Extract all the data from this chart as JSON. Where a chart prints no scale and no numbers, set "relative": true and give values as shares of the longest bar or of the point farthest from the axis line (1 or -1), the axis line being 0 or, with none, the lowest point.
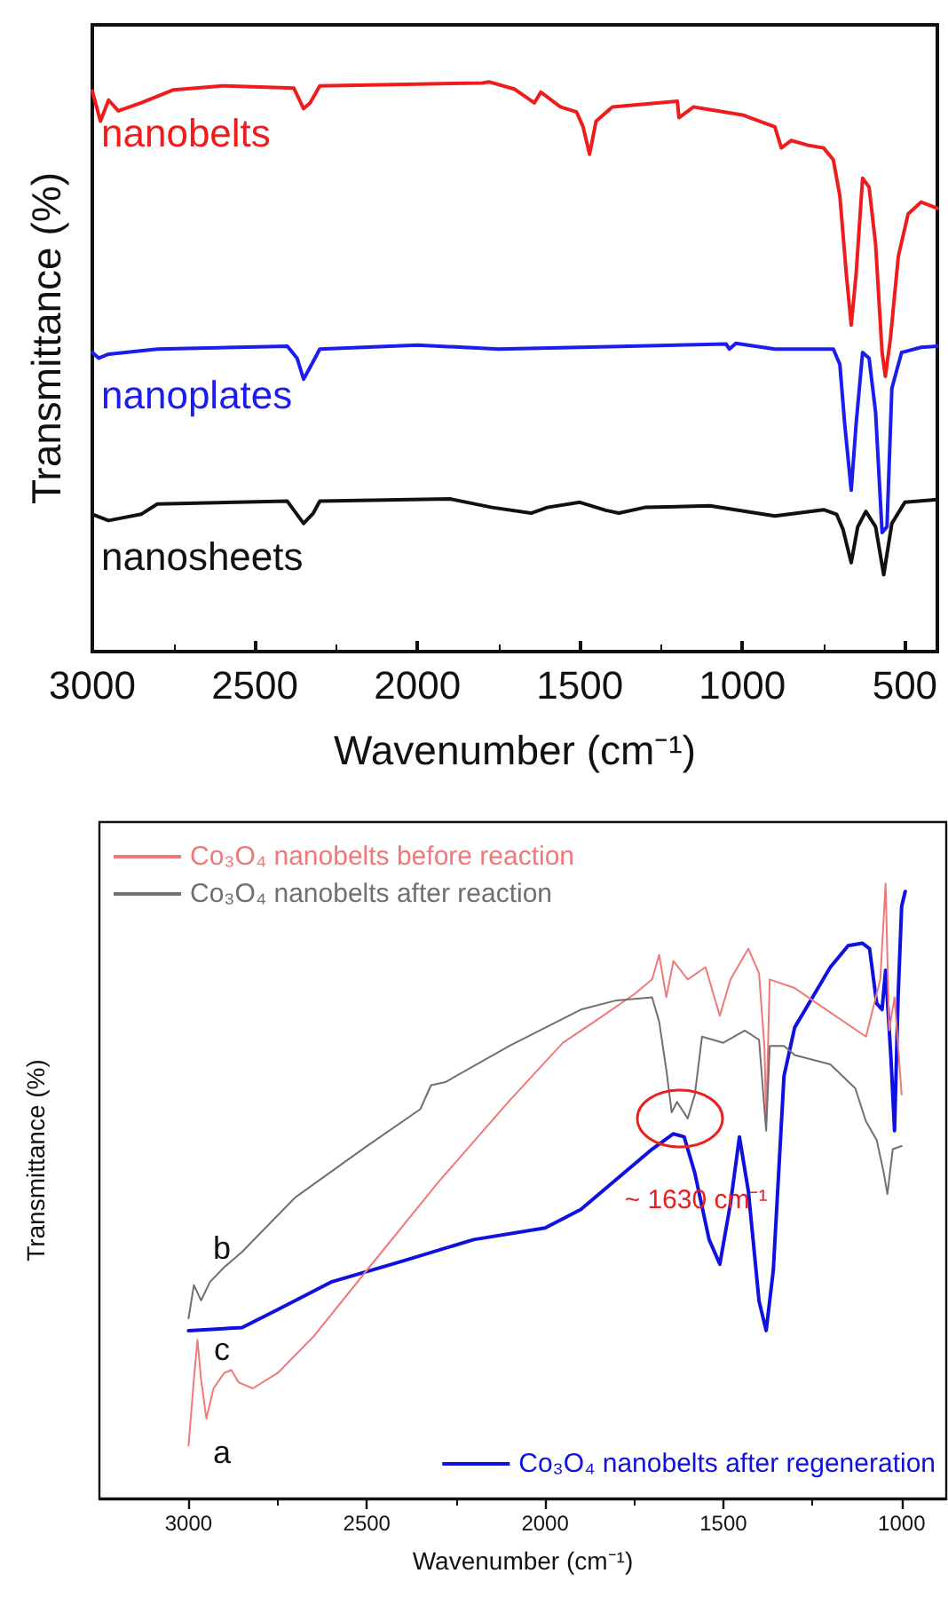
{
  "chart_data": [
    {
      "type": "line",
      "relative": true,
      "xlabel": "Wavenumber (cm⁻¹)",
      "ylabel": "Transmittance (%)",
      "xlim": [
        3000,
        400
      ],
      "xticks": [
        3000,
        2500,
        2000,
        1500,
        1000,
        500
      ],
      "legend": false,
      "grid": false,
      "marker": "none",
      "line_style": "solid",
      "series": [
        {
          "name": "nanobelts",
          "color": "#ee1c1c",
          "x": [
            3000,
            2975,
            2950,
            2920,
            2850,
            2750,
            2600,
            2380,
            2350,
            2330,
            2300,
            2000,
            1800,
            1780,
            1700,
            1640,
            1620,
            1560,
            1510,
            1490,
            1470,
            1450,
            1400,
            1200,
            1195,
            1150,
            1000,
            900,
            880,
            850,
            800,
            750,
            720,
            700,
            680,
            665,
            650,
            630,
            610,
            590,
            570,
            560,
            545,
            520,
            490,
            450,
            400
          ],
          "values": [
            0.984,
            0.931,
            0.968,
            0.949,
            0.963,
            0.986,
            0.993,
            0.989,
            0.953,
            0.963,
            0.993,
            0.996,
            0.998,
            1.0,
            0.987,
            0.963,
            0.982,
            0.956,
            0.947,
            0.921,
            0.873,
            0.931,
            0.956,
            0.966,
            0.937,
            0.956,
            0.942,
            0.921,
            0.884,
            0.897,
            0.889,
            0.884,
            0.863,
            0.8,
            0.662,
            0.573,
            0.662,
            0.831,
            0.815,
            0.715,
            0.525,
            0.483,
            0.546,
            0.694,
            0.768,
            0.789,
            0.778
          ]
        },
        {
          "name": "nanoplates",
          "color": "#1c1cee",
          "x": [
            3000,
            2980,
            2950,
            2800,
            2400,
            2370,
            2350,
            2330,
            2300,
            2000,
            1750,
            1500,
            1050,
            1040,
            1020,
            900,
            720,
            700,
            685,
            665,
            650,
            630,
            610,
            590,
            570,
            555,
            540,
            510,
            450,
            400
          ],
          "values": [
            0.525,
            0.515,
            0.522,
            0.531,
            0.536,
            0.515,
            0.478,
            0.499,
            0.531,
            0.538,
            0.531,
            0.534,
            0.54,
            0.531,
            0.541,
            0.531,
            0.531,
            0.504,
            0.399,
            0.283,
            0.399,
            0.525,
            0.515,
            0.42,
            0.209,
            0.219,
            0.462,
            0.525,
            0.534,
            0.536
          ]
        },
        {
          "name": "nanosheets",
          "color": "#111111",
          "x": [
            3000,
            2950,
            2850,
            2800,
            2400,
            2350,
            2320,
            2300,
            1900,
            1770,
            1650,
            1600,
            1500,
            1420,
            1380,
            1300,
            1100,
            900,
            750,
            710,
            690,
            665,
            645,
            620,
            590,
            565,
            540,
            500,
            400
          ],
          "values": [
            0.241,
            0.23,
            0.241,
            0.259,
            0.264,
            0.225,
            0.243,
            0.264,
            0.268,
            0.253,
            0.243,
            0.253,
            0.262,
            0.248,
            0.243,
            0.253,
            0.256,
            0.238,
            0.249,
            0.241,
            0.214,
            0.156,
            0.219,
            0.246,
            0.219,
            0.135,
            0.225,
            0.262,
            0.267
          ]
        }
      ]
    },
    {
      "type": "line",
      "relative": true,
      "xlabel": "Wavenumber (cm⁻¹)",
      "ylabel": "Transmittance (%)",
      "xlim": [
        3250,
        875
      ],
      "xticks": [
        3000,
        2500,
        2000,
        1500,
        1000
      ],
      "legend": "top left",
      "grid": false,
      "marker": "none",
      "line_style": "solid",
      "annotations": [
        "a",
        "b",
        "c",
        "~ 1630 cm⁻¹"
      ],
      "series": [
        {
          "name": "Co₃O₄ nanobelts before reaction",
          "color": "#f07878",
          "x": [
            3000,
            2985,
            2975,
            2965,
            2950,
            2930,
            2900,
            2880,
            2860,
            2820,
            2750,
            2650,
            2500,
            2300,
            2100,
            1950,
            1850,
            1750,
            1700,
            1680,
            1660,
            1640,
            1600,
            1550,
            1510,
            1480,
            1430,
            1400,
            1385,
            1380,
            1370,
            1300,
            1250,
            1100,
            1060,
            1045,
            1035,
            1020,
            1000
          ],
          "values": [
            0.086,
            0.194,
            0.258,
            0.194,
            0.13,
            0.179,
            0.204,
            0.209,
            0.189,
            0.179,
            0.204,
            0.263,
            0.371,
            0.514,
            0.647,
            0.741,
            0.78,
            0.82,
            0.844,
            0.884,
            0.815,
            0.874,
            0.844,
            0.864,
            0.785,
            0.844,
            0.894,
            0.854,
            0.736,
            0.618,
            0.844,
            0.83,
            0.81,
            0.751,
            0.844,
            1.0,
            0.761,
            0.815,
            0.657
          ]
        },
        {
          "name": "Co₃O₄ nanobelts after reaction",
          "color": "#707070",
          "x": [
            3000,
            2985,
            2965,
            2940,
            2900,
            2850,
            2700,
            2500,
            2350,
            2320,
            2280,
            2100,
            1900,
            1800,
            1700,
            1680,
            1660,
            1645,
            1630,
            1600,
            1580,
            1560,
            1500,
            1440,
            1400,
            1380,
            1370,
            1330,
            1300,
            1200,
            1130,
            1100,
            1070,
            1050,
            1040,
            1025,
            1000
          ],
          "values": [
            0.293,
            0.347,
            0.322,
            0.352,
            0.376,
            0.401,
            0.49,
            0.573,
            0.633,
            0.672,
            0.677,
            0.736,
            0.795,
            0.81,
            0.815,
            0.775,
            0.697,
            0.628,
            0.645,
            0.618,
            0.657,
            0.751,
            0.741,
            0.761,
            0.746,
            0.598,
            0.736,
            0.736,
            0.721,
            0.706,
            0.667,
            0.613,
            0.583,
            0.529,
            0.495,
            0.568,
            0.573
          ]
        },
        {
          "name": "Co₃O₄ nanobelts after regeneration",
          "color": "#1010e0",
          "x": [
            3000,
            2850,
            2750,
            2600,
            2400,
            2200,
            2000,
            1900,
            1800,
            1700,
            1640,
            1610,
            1580,
            1540,
            1510,
            1480,
            1455,
            1430,
            1400,
            1380,
            1360,
            1330,
            1300,
            1250,
            1200,
            1150,
            1110,
            1090,
            1070,
            1055,
            1045,
            1030,
            1020,
            1010,
            1000,
            990
          ],
          "values": [
            0.273,
            0.278,
            0.307,
            0.352,
            0.386,
            0.421,
            0.44,
            0.47,
            0.519,
            0.568,
            0.593,
            0.588,
            0.529,
            0.421,
            0.381,
            0.48,
            0.588,
            0.5,
            0.321,
            0.273,
            0.371,
            0.687,
            0.766,
            0.815,
            0.864,
            0.899,
            0.903,
            0.894,
            0.805,
            0.795,
            0.859,
            0.716,
            0.598,
            0.815,
            0.963,
            0.987
          ]
        }
      ]
    }
  ]
}
